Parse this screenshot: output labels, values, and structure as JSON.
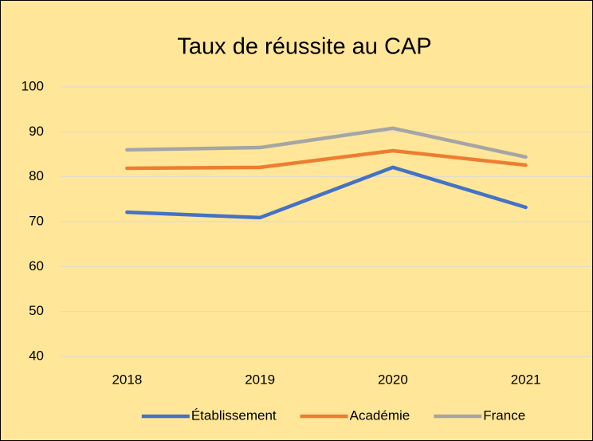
{
  "chart_data": {
    "type": "line",
    "title": "Taux de réussite au CAP",
    "categories": [
      "2018",
      "2019",
      "2020",
      "2021"
    ],
    "series": [
      {
        "name": "Établissement",
        "color": "#4472c4",
        "values": [
          72.1,
          70.9,
          82.1,
          73.2
        ]
      },
      {
        "name": "Académie",
        "color": "#ed7d31",
        "values": [
          81.9,
          82.1,
          85.8,
          82.6
        ]
      },
      {
        "name": "France",
        "color": "#a5a5a5",
        "values": [
          86.0,
          86.5,
          90.8,
          84.4
        ]
      }
    ],
    "ylim": [
      40,
      100
    ],
    "yticks": [
      40,
      50,
      60,
      70,
      80,
      90,
      100
    ],
    "grid": true,
    "legend": "bottom"
  }
}
